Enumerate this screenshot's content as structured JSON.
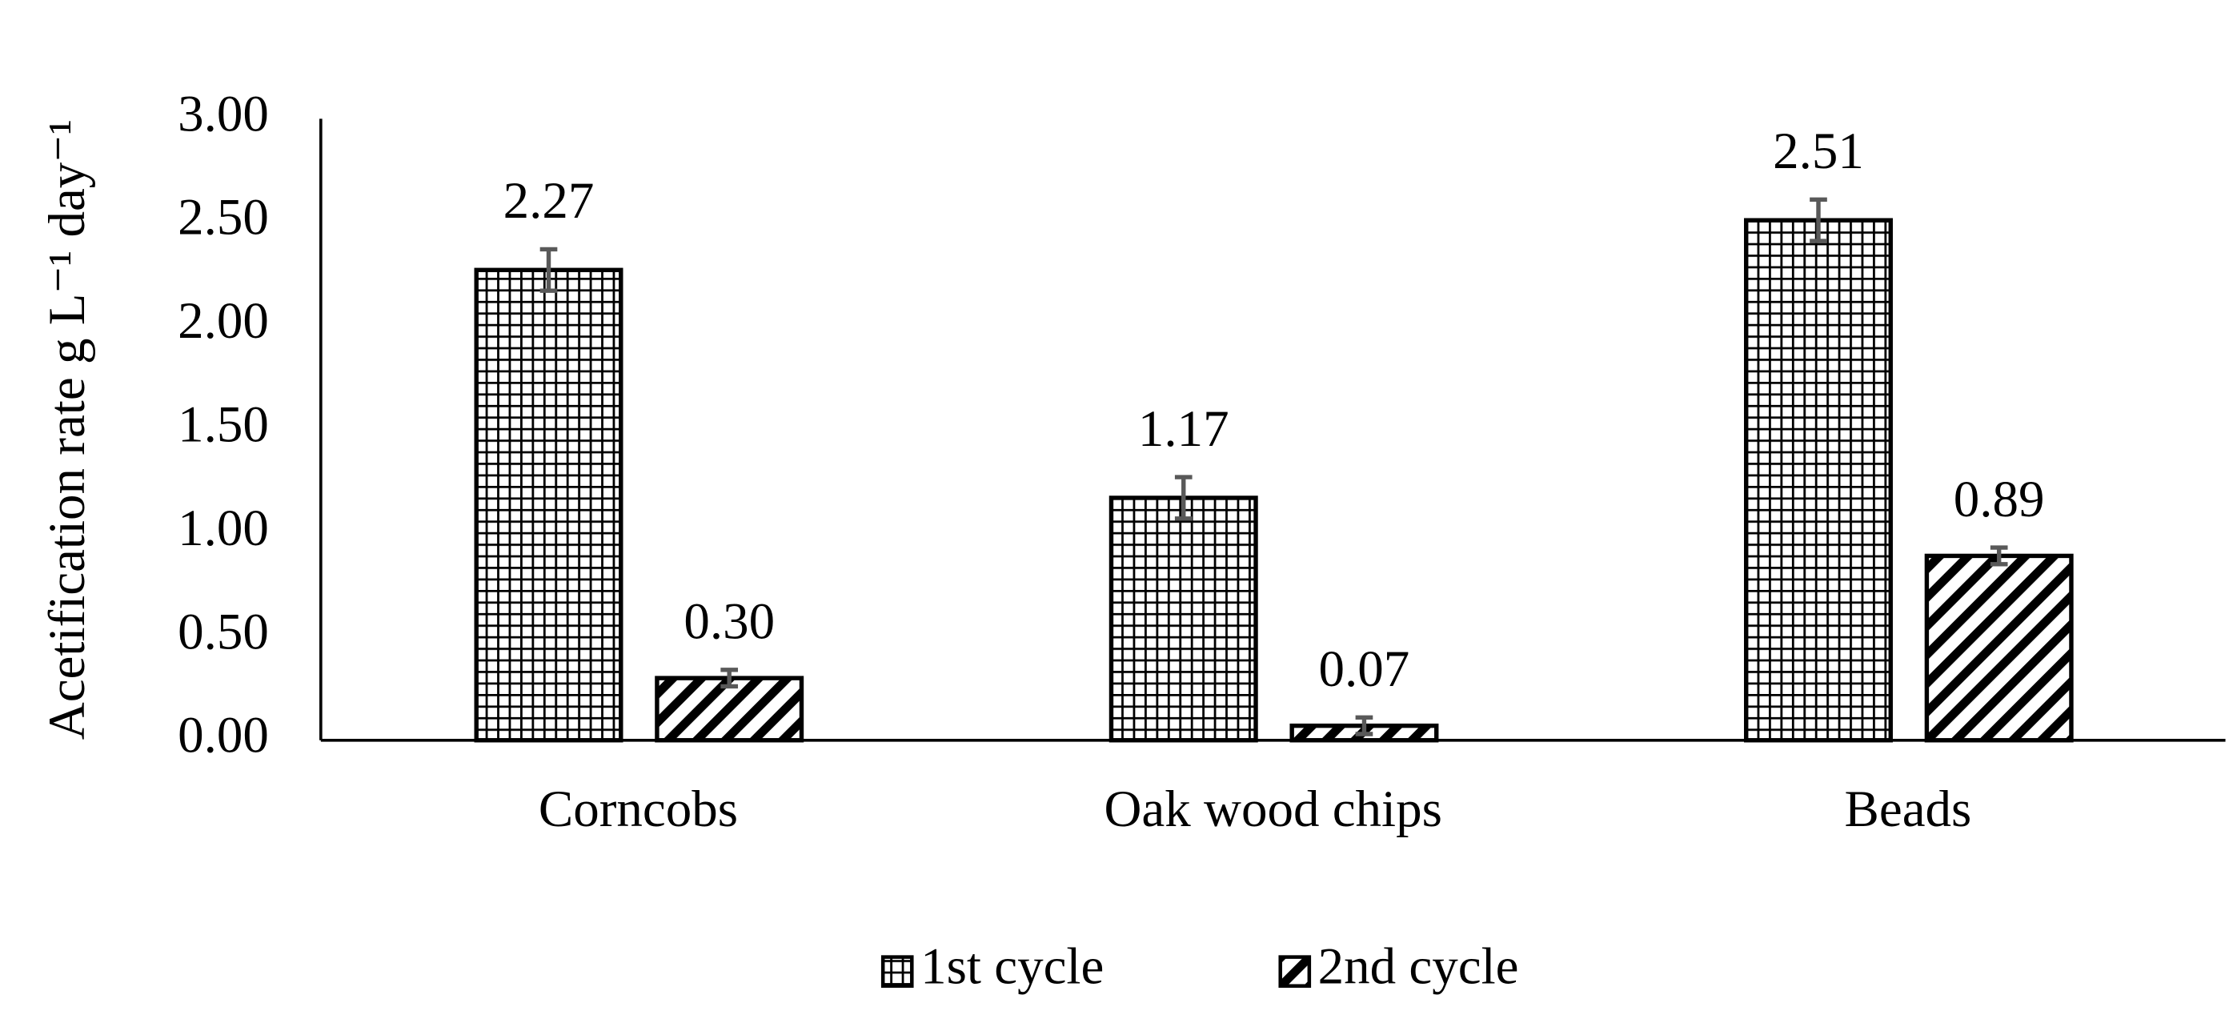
{
  "chart_data": {
    "type": "bar",
    "y_label": "Acetification rate g L⁻¹ day⁻¹",
    "categories": [
      "Corncobs",
      "Oak wood chips",
      "Beads"
    ],
    "series": [
      {
        "name": "1st cycle",
        "color": "#000000",
        "pattern": "grid",
        "values": [
          2.27,
          1.17,
          2.51
        ],
        "errors": [
          0.1,
          0.1,
          0.1
        ]
      },
      {
        "name": "2nd cycle",
        "color": "#000000",
        "pattern": "diagonal",
        "values": [
          0.3,
          0.07,
          0.89
        ],
        "value_labels": [
          "0.30",
          "0.07",
          "0.89"
        ],
        "errors": [
          0.04,
          0.04,
          0.04
        ]
      }
    ],
    "ylim": [
      0,
      3
    ],
    "yticks": [
      {
        "value": 0,
        "label": "0.00"
      },
      {
        "value": 0.5,
        "label": "0.50"
      },
      {
        "value": 1,
        "label": "1.00"
      },
      {
        "value": 1.5,
        "label": "1.50"
      },
      {
        "value": 2,
        "label": "2.00"
      },
      {
        "value": 2.5,
        "label": "2.50"
      },
      {
        "value": 3,
        "label": "3.00"
      }
    ],
    "grid": false,
    "legend": "bottom"
  }
}
